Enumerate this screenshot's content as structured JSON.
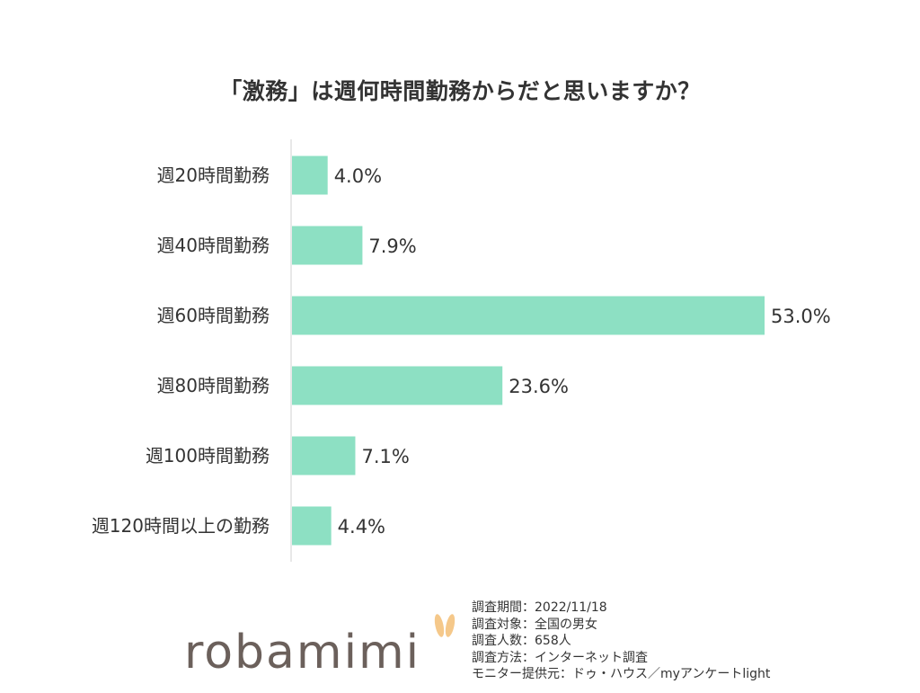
{
  "chart_data": {
    "type": "bar",
    "orientation": "horizontal",
    "title": "「激務」は週何時間勤務からだと思いますか？",
    "categories": [
      "週20時間勤務",
      "週40時間勤務",
      "週60時間勤務",
      "週80時間勤務",
      "週100時間勤務",
      "週120時間以上の勤務"
    ],
    "values": [
      4.0,
      7.9,
      53.0,
      23.6,
      7.1,
      4.4
    ],
    "value_labels": [
      "4.0%",
      "7.9%",
      "53.0%",
      "23.6%",
      "7.1%",
      "4.4%"
    ],
    "xlim": [
      0,
      60
    ],
    "grid": false,
    "legend": "none",
    "bar_color": "#8de0c3"
  },
  "logo": {
    "text": "robamimi",
    "ear_color": "#f5c88a"
  },
  "notes": [
    "調査期間：2022/11/18",
    "調査対象：全国の男女",
    "調査人数：658人",
    "調査方法：インターネット調査",
    "モニター提供元：ドゥ・ハウス／myアンケートlight"
  ]
}
